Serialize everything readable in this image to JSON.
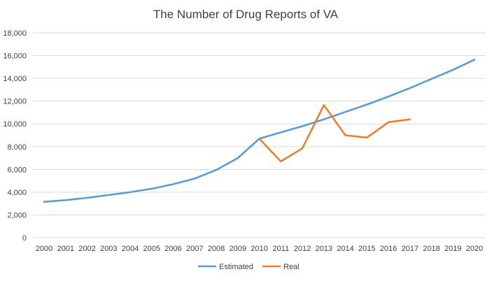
{
  "chart_data": {
    "type": "line",
    "title": "The Number of Drug Reports of VA",
    "xlabel": "",
    "ylabel": "",
    "x": [
      "2000",
      "2001",
      "2002",
      "2003",
      "2004",
      "2005",
      "2006",
      "2007",
      "2008",
      "2009",
      "2010",
      "2011",
      "2012",
      "2013",
      "2014",
      "2015",
      "2016",
      "2017",
      "2018",
      "2019",
      "2020"
    ],
    "ylim": [
      0,
      18000
    ],
    "y_ticks": [
      0,
      2000,
      4000,
      6000,
      8000,
      10000,
      12000,
      14000,
      16000,
      18000
    ],
    "y_tick_labels": [
      "0",
      "2,000",
      "4,000",
      "6,000",
      "8,000",
      "10,000",
      "12,000",
      "14,000",
      "16,000",
      "18,000"
    ],
    "grid": true,
    "legend_position": "bottom",
    "series": [
      {
        "name": "Estimated",
        "color": "#5B9BD5",
        "values": [
          3150,
          3300,
          3500,
          3750,
          4000,
          4300,
          4700,
          5200,
          5950,
          7000,
          8700,
          9250,
          9800,
          10400,
          11050,
          11700,
          12400,
          13150,
          13950,
          14750,
          15650
        ]
      },
      {
        "name": "Real",
        "color": "#ED7D31",
        "values": [
          null,
          null,
          null,
          null,
          null,
          null,
          null,
          null,
          null,
          null,
          8700,
          6700,
          7850,
          11650,
          9000,
          8800,
          10150,
          10400,
          null,
          null,
          null
        ]
      }
    ]
  }
}
